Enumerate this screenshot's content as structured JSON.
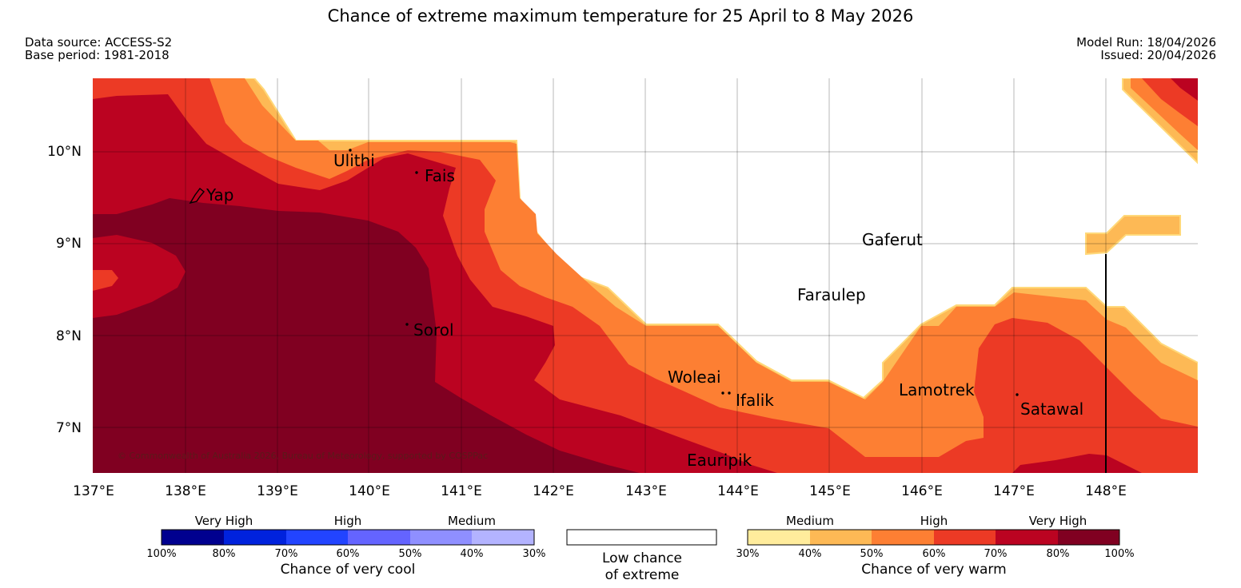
{
  "title": "Chance of extreme maximum temperature for 25 April to 8 May 2026",
  "meta": {
    "data_source": "Data source: ACCESS-S2",
    "base_period": "Base period: 1981-2018",
    "model_run": "Model Run: 18/04/2026",
    "issued": "Issued: 20/04/2026"
  },
  "map": {
    "lat_labels": [
      "10°N",
      "9°N",
      "8°N",
      "7°N"
    ],
    "lon_labels": [
      "137°E",
      "138°E",
      "139°E",
      "140°E",
      "141°E",
      "142°E",
      "143°E",
      "144°E",
      "145°E",
      "146°E",
      "147°E",
      "148°E"
    ],
    "places": [
      {
        "name": "Ulithi"
      },
      {
        "name": "Fais"
      },
      {
        "name": "Yap"
      },
      {
        "name": "Sorol"
      },
      {
        "name": "Gaferut"
      },
      {
        "name": "Faraulep"
      },
      {
        "name": "Woleai"
      },
      {
        "name": "Ifalik"
      },
      {
        "name": "Lamotrek"
      },
      {
        "name": "Satawal"
      },
      {
        "name": "Eauripik"
      }
    ],
    "copyright": "© Commonwealth of Australia 2026, Bureau of Meteorology, supported by COSPPac"
  },
  "legend": {
    "cool": {
      "headings": [
        "Very High",
        "High",
        "Medium"
      ],
      "ticks": [
        "100%",
        "80%",
        "70%",
        "60%",
        "50%",
        "40%",
        "30%"
      ],
      "colors": [
        "#00008f",
        "#0022dd",
        "#2244ff",
        "#6464ff",
        "#8f8fff",
        "#b3b3ff"
      ],
      "caption": "Chance of very cool"
    },
    "neutral": {
      "caption_line1": "Low chance",
      "caption_line2": "of extreme"
    },
    "warm": {
      "headings": [
        "Medium",
        "High",
        "Very High"
      ],
      "ticks": [
        "30%",
        "40%",
        "50%",
        "60%",
        "70%",
        "80%",
        "100%"
      ],
      "colors": [
        "#ffec9c",
        "#fdb955",
        "#fd7f33",
        "#ec3a25",
        "#bb0321",
        "#800021"
      ],
      "caption": "Chance of very warm"
    }
  },
  "colors": {
    "light": "#fdb955",
    "orange": "#fd7f33",
    "red_orange": "#ec3a25",
    "crimson": "#bb0321",
    "maroon": "#800021"
  }
}
